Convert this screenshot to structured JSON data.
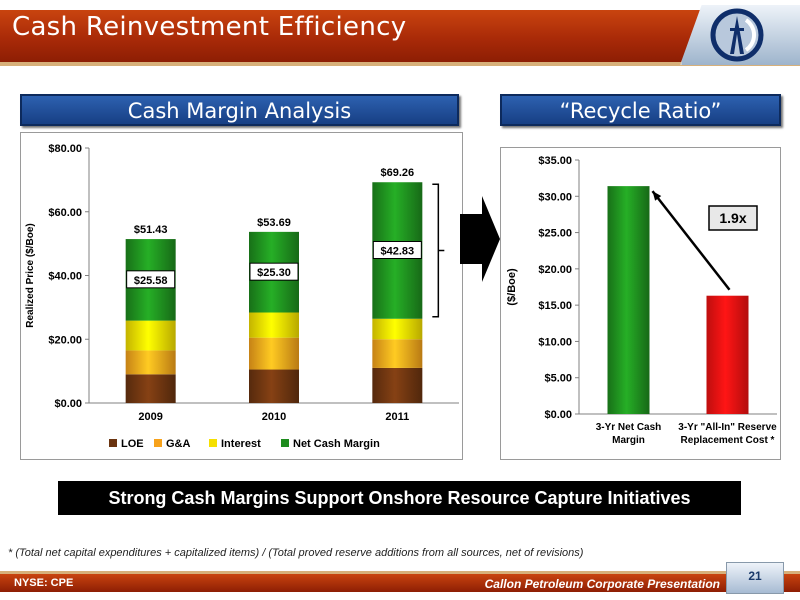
{
  "title": "Cash Reinvestment Efficiency",
  "left_panel": {
    "header": "Cash Margin Analysis"
  },
  "right_panel": {
    "header": "“Recycle Ratio”"
  },
  "chart_data": [
    {
      "type": "bar",
      "stacked": true,
      "categories": [
        "2009",
        "2010",
        "2011"
      ],
      "series": [
        {
          "name": "LOE",
          "values": [
            9.0,
            10.5,
            11.0
          ],
          "color": "#6b3410"
        },
        {
          "name": "G&A",
          "values": [
            7.5,
            10.0,
            9.0
          ],
          "color": "#f7a21b"
        },
        {
          "name": "Interest",
          "values": [
            9.35,
            7.89,
            6.43
          ],
          "color": "#f5e000"
        },
        {
          "name": "Net Cash Margin",
          "values": [
            25.58,
            25.3,
            42.83
          ],
          "color": "#1e8c1e"
        }
      ],
      "totals": [
        "$51.43",
        "$53.69",
        "$69.26"
      ],
      "margin_labels": [
        "$25.58",
        "$25.30",
        "$42.83"
      ],
      "ylabel": "Realized Price ($/Boe)",
      "ylim": [
        0,
        80
      ],
      "yticks": [
        "$0.00",
        "$20.00",
        "$40.00",
        "$60.00",
        "$80.00"
      ],
      "legend": "bottom",
      "grid": false
    },
    {
      "type": "bar",
      "categories": [
        [
          "3-Yr Net Cash",
          "Margin"
        ],
        [
          "3-Yr \"All-In\" Reserve",
          "Replacement Cost *"
        ]
      ],
      "values": [
        31.4,
        16.3
      ],
      "colors": [
        "#1e8c1e",
        "#ee1111"
      ],
      "ylabel": "($/Boe)",
      "ylim": [
        0,
        35
      ],
      "yticks": [
        "$0.00",
        "$5.00",
        "$10.00",
        "$15.00",
        "$20.00",
        "$25.00",
        "$30.00",
        "$35.00"
      ],
      "annotation": "1.9x",
      "grid": false
    }
  ],
  "banner": "Strong Cash Margins Support Onshore Resource Capture Initiatives",
  "footnote": "* (Total net capital expenditures + capitalized items) / (Total proved reserve additions from all sources, net of revisions)",
  "footer": {
    "ticker": "NYSE: CPE",
    "presentation": "Callon Petroleum Corporate Presentation",
    "page": "21"
  }
}
